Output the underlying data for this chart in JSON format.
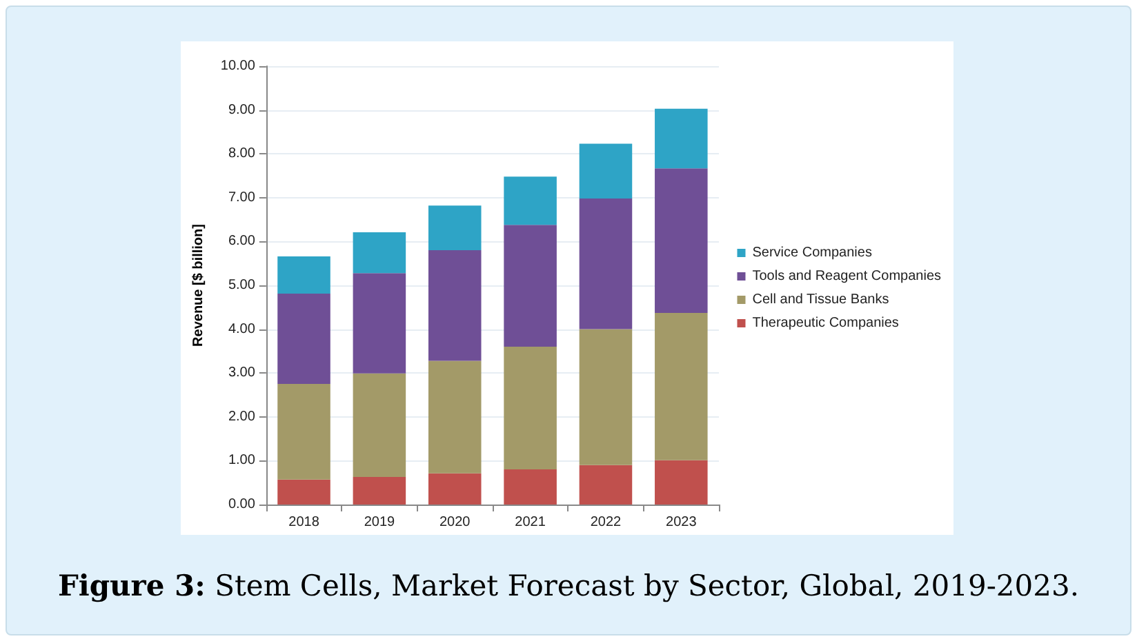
{
  "chart_data": {
    "type": "bar",
    "title": "Figure 3: Stem Cells, Market Forecast by Sector, Global, 2019-2023.",
    "ylabel": "Revenue [$ billion]",
    "categories": [
      "2018",
      "2019",
      "2020",
      "2021",
      "2022",
      "2023"
    ],
    "stacked": true,
    "series": [
      {
        "name": "Therapeutic Companies",
        "color": "#c0504d",
        "values": [
          0.57,
          0.63,
          0.71,
          0.8,
          0.9,
          1.01
        ]
      },
      {
        "name": "Cell and Tissue Banks",
        "color": "#a39a68",
        "values": [
          2.18,
          2.36,
          2.57,
          2.8,
          3.1,
          3.36
        ]
      },
      {
        "name": "Tools and Reagent Companies",
        "color": "#6f4f96",
        "values": [
          2.06,
          2.29,
          2.52,
          2.78,
          2.98,
          3.3
        ]
      },
      {
        "name": "Service Companies",
        "color": "#2ea4c6",
        "values": [
          0.85,
          0.93,
          1.02,
          1.1,
          1.25,
          1.36
        ]
      }
    ],
    "ylim": [
      0,
      10
    ],
    "yticks": [
      {
        "value": 0,
        "label": "0.00"
      },
      {
        "value": 1,
        "label": "1.00"
      },
      {
        "value": 2,
        "label": "2.00"
      },
      {
        "value": 3,
        "label": "3.00"
      },
      {
        "value": 4,
        "label": "4.00"
      },
      {
        "value": 5,
        "label": "5.00"
      },
      {
        "value": 6,
        "label": "6.00"
      },
      {
        "value": 7,
        "label": "7.00"
      },
      {
        "value": 8,
        "label": "8.00"
      },
      {
        "value": 9,
        "label": "9.00"
      },
      {
        "value": 10,
        "label": "10.00"
      }
    ],
    "grid": "y",
    "legend": "right"
  }
}
